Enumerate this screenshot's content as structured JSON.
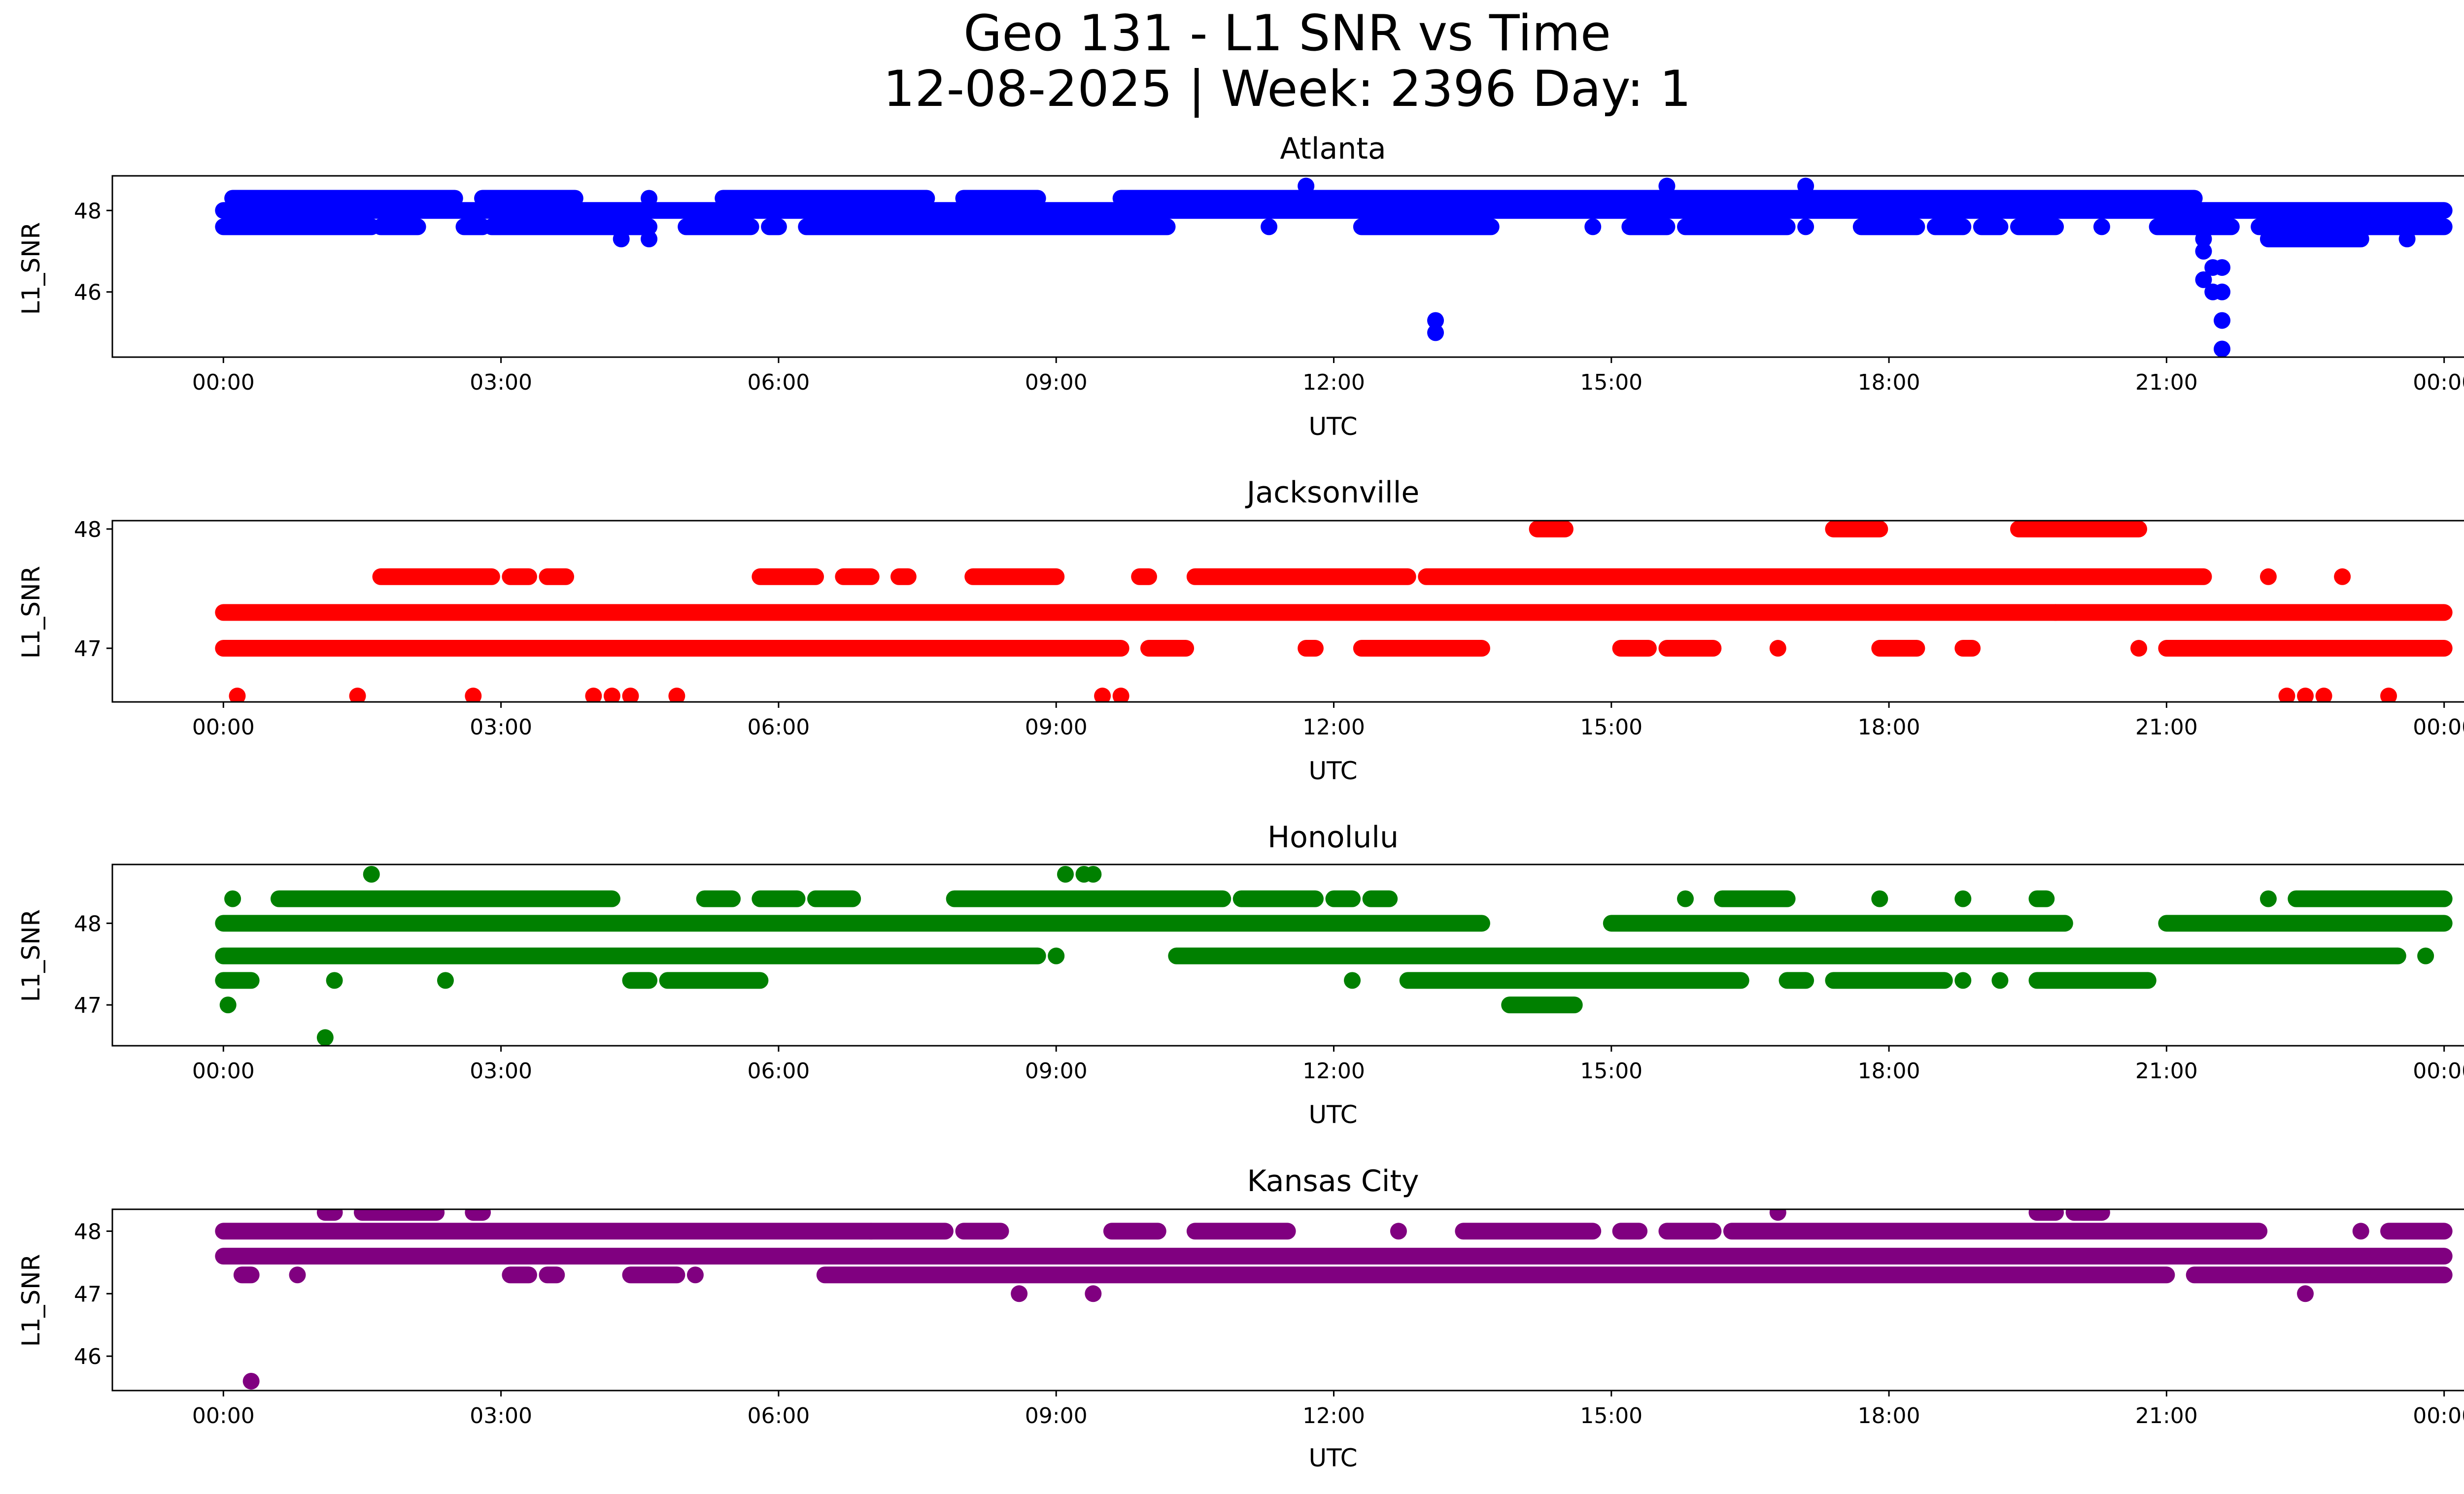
{
  "chart_data": {
    "type": "scatter",
    "title": "Geo 131 - L1 SNR vs Time",
    "subtitle": "12-08-2025 | Week: 2396 Day: 1",
    "x_ticks": [
      "00:00",
      "03:00",
      "06:00",
      "09:00",
      "12:00",
      "15:00",
      "18:00",
      "21:00",
      "00:00"
    ],
    "x_unit": "hours UTC",
    "xlim": [
      -1.2,
      25.2
    ],
    "panels": [
      {
        "title": "Atlanta",
        "xlabel": "UTC",
        "ylabel": "L1_SNR",
        "color": "#0000ff",
        "ylim": [
          44.4,
          48.85
        ],
        "yticks": [
          "46",
          "48"
        ],
        "bands": [
          {
            "y": 48.0,
            "segments": [
              [
                0.0,
                24.0
              ]
            ]
          },
          {
            "y": 47.6,
            "segments": [
              [
                0.0,
                1.6
              ],
              [
                1.7,
                2.1
              ],
              [
                2.6,
                2.8
              ],
              [
                2.9,
                4.6
              ],
              [
                5.0,
                5.7
              ],
              [
                5.9,
                6.0
              ],
              [
                6.3,
                10.2
              ],
              [
                11.3,
                11.3
              ],
              [
                12.3,
                13.7
              ],
              [
                14.8,
                14.8
              ],
              [
                15.2,
                15.6
              ],
              [
                15.8,
                16.9
              ],
              [
                17.1,
                17.1
              ],
              [
                17.7,
                18.3
              ],
              [
                18.5,
                18.8
              ],
              [
                19.0,
                19.2
              ],
              [
                19.4,
                19.8
              ],
              [
                20.3,
                20.3
              ],
              [
                20.9,
                21.7
              ],
              [
                22.0,
                24.0
              ]
            ]
          },
          {
            "y": 48.3,
            "segments": [
              [
                0.1,
                2.5
              ],
              [
                2.8,
                3.8
              ],
              [
                4.6,
                4.6
              ],
              [
                5.4,
                7.6
              ],
              [
                8.0,
                8.8
              ],
              [
                9.7,
                21.3
              ]
            ]
          },
          {
            "y": 47.3,
            "segments": [
              [
                4.3,
                4.3
              ],
              [
                4.6,
                4.6
              ],
              [
                22.1,
                23.1
              ],
              [
                23.6,
                23.6
              ]
            ]
          }
        ],
        "points": [
          [
            13.1,
            45.3
          ],
          [
            13.1,
            45.0
          ],
          [
            11.7,
            48.6
          ],
          [
            15.6,
            48.6
          ],
          [
            17.1,
            48.6
          ],
          [
            21.4,
            47.3
          ],
          [
            21.4,
            47.0
          ],
          [
            21.5,
            46.6
          ],
          [
            21.6,
            46.6
          ],
          [
            21.4,
            46.3
          ],
          [
            21.5,
            46.0
          ],
          [
            21.6,
            46.0
          ],
          [
            21.6,
            45.3
          ],
          [
            21.6,
            44.6
          ]
        ]
      },
      {
        "title": "Jacksonville",
        "xlabel": "UTC",
        "ylabel": "L1_SNR",
        "color": "#ff0000",
        "ylim": [
          46.55,
          48.07
        ],
        "yticks": [
          "47",
          "48"
        ],
        "bands": [
          {
            "y": 47.3,
            "segments": [
              [
                0.0,
                24.0
              ]
            ]
          },
          {
            "y": 47.0,
            "segments": [
              [
                0.0,
                9.7
              ],
              [
                10.0,
                10.4
              ],
              [
                11.7,
                11.8
              ],
              [
                12.3,
                13.6
              ],
              [
                15.1,
                15.4
              ],
              [
                15.6,
                16.1
              ],
              [
                16.8,
                16.8
              ],
              [
                17.9,
                18.3
              ],
              [
                18.8,
                18.9
              ],
              [
                21.0,
                24.0
              ]
            ]
          },
          {
            "y": 47.6,
            "segments": [
              [
                1.7,
                2.9
              ],
              [
                3.1,
                3.3
              ],
              [
                3.5,
                3.7
              ],
              [
                5.8,
                6.4
              ],
              [
                6.7,
                7.0
              ],
              [
                7.3,
                7.4
              ],
              [
                8.1,
                9.0
              ],
              [
                9.9,
                10.0
              ],
              [
                10.5,
                12.8
              ],
              [
                13.0,
                21.4
              ]
            ]
          },
          {
            "y": 48.0,
            "segments": [
              [
                14.2,
                14.5
              ],
              [
                17.4,
                17.9
              ],
              [
                19.4,
                20.7
              ]
            ]
          }
        ],
        "points": [
          [
            0.15,
            46.6
          ],
          [
            1.45,
            46.6
          ],
          [
            2.7,
            46.6
          ],
          [
            4.0,
            46.6
          ],
          [
            4.2,
            46.6
          ],
          [
            4.4,
            46.6
          ],
          [
            4.9,
            46.6
          ],
          [
            9.5,
            46.6
          ],
          [
            9.7,
            46.6
          ],
          [
            22.3,
            46.6
          ],
          [
            22.5,
            46.6
          ],
          [
            22.7,
            46.6
          ],
          [
            23.4,
            46.6
          ],
          [
            22.1,
            47.6
          ],
          [
            22.9,
            47.6
          ],
          [
            19.8,
            47.3
          ],
          [
            20.7,
            47.0
          ]
        ]
      },
      {
        "title": "Honolulu",
        "xlabel": "UTC",
        "ylabel": "L1_SNR",
        "color": "#008000",
        "ylim": [
          46.5,
          48.72
        ],
        "yticks": [
          "47",
          "48"
        ],
        "bands": [
          {
            "y": 48.0,
            "segments": [
              [
                0.0,
                13.6
              ],
              [
                15.0,
                19.9
              ],
              [
                21.0,
                24.0
              ]
            ]
          },
          {
            "y": 47.6,
            "segments": [
              [
                0.0,
                8.8
              ],
              [
                9.0,
                9.0
              ],
              [
                10.3,
                23.5
              ],
              [
                23.8,
                23.8
              ]
            ]
          },
          {
            "y": 48.3,
            "segments": [
              [
                0.1,
                0.1
              ],
              [
                0.6,
                4.2
              ],
              [
                5.2,
                5.5
              ],
              [
                5.8,
                6.2
              ],
              [
                6.4,
                6.8
              ],
              [
                7.9,
                10.8
              ],
              [
                11.0,
                11.8
              ],
              [
                12.0,
                12.2
              ],
              [
                12.4,
                12.6
              ],
              [
                15.8,
                15.8
              ],
              [
                16.2,
                16.9
              ],
              [
                17.9,
                17.9
              ],
              [
                18.8,
                18.8
              ],
              [
                19.6,
                19.7
              ],
              [
                22.1,
                22.1
              ],
              [
                22.4,
                24.0
              ]
            ]
          },
          {
            "y": 47.3,
            "segments": [
              [
                0.0,
                0.3
              ],
              [
                1.2,
                1.2
              ],
              [
                2.4,
                2.4
              ],
              [
                4.4,
                4.6
              ],
              [
                4.8,
                5.8
              ],
              [
                12.2,
                12.2
              ],
              [
                12.8,
                16.4
              ],
              [
                16.9,
                17.1
              ],
              [
                17.4,
                18.6
              ],
              [
                18.8,
                18.8
              ],
              [
                19.2,
                19.2
              ],
              [
                19.6,
                20.8
              ]
            ]
          },
          {
            "y": 47.0,
            "segments": [
              [
                13.9,
                14.6
              ]
            ]
          }
        ],
        "points": [
          [
            0.05,
            47.0
          ],
          [
            1.1,
            46.6
          ],
          [
            1.6,
            48.6
          ],
          [
            9.1,
            48.6
          ],
          [
            9.3,
            48.6
          ],
          [
            9.4,
            48.6
          ]
        ]
      },
      {
        "title": "Kansas City",
        "xlabel": "UTC",
        "ylabel": "L1_SNR",
        "color": "#800080",
        "ylim": [
          45.45,
          48.35
        ],
        "yticks": [
          "46",
          "47",
          "48"
        ],
        "bands": [
          {
            "y": 48.0,
            "segments": [
              [
                0.0,
                7.0
              ],
              [
                7.0,
                7.8
              ],
              [
                8.0,
                8.4
              ],
              [
                9.6,
                10.1
              ],
              [
                10.5,
                11.5
              ],
              [
                12.7,
                12.7
              ],
              [
                13.4,
                14.8
              ],
              [
                15.1,
                15.3
              ],
              [
                15.6,
                16.1
              ],
              [
                16.3,
                22.0
              ],
              [
                23.4,
                24.0
              ]
            ]
          },
          {
            "y": 47.6,
            "segments": [
              [
                0.0,
                24.0
              ]
            ]
          },
          {
            "y": 47.3,
            "segments": [
              [
                0.2,
                0.3
              ],
              [
                0.8,
                0.8
              ],
              [
                3.1,
                3.3
              ],
              [
                3.5,
                3.6
              ],
              [
                4.4,
                4.9
              ],
              [
                5.1,
                5.1
              ],
              [
                6.5,
                21.0
              ],
              [
                21.3,
                24.0
              ]
            ]
          },
          {
            "y": 48.3,
            "segments": [
              [
                1.1,
                1.2
              ],
              [
                1.5,
                2.3
              ],
              [
                2.7,
                2.8
              ],
              [
                16.8,
                16.8
              ],
              [
                19.6,
                19.8
              ],
              [
                20.0,
                20.3
              ]
            ]
          }
        ],
        "points": [
          [
            0.3,
            45.6
          ],
          [
            8.6,
            47.0
          ],
          [
            9.4,
            47.0
          ],
          [
            22.5,
            47.0
          ],
          [
            23.1,
            48.0
          ]
        ]
      }
    ]
  }
}
